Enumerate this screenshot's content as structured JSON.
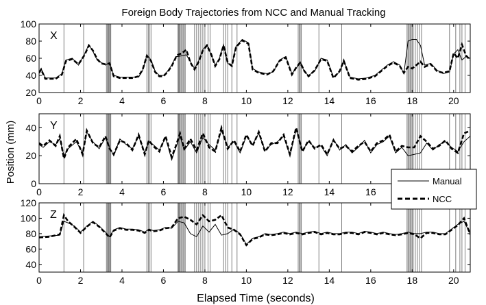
{
  "chart_data": {
    "type": "line",
    "title": "Foreign Body Trajectories from NCC and Manual Tracking",
    "xlabel": "Elapsed Time (seconds)",
    "ylabel": "Position (mm)",
    "xlim": [
      0,
      20.8
    ],
    "legend": {
      "placement": "right",
      "entries": [
        "Manual",
        "NCC"
      ]
    },
    "colors": {
      "manual": "#000000",
      "ncc": "#000000",
      "markers": "#7f7f7f"
    },
    "event_lines": [
      1.2,
      2.15,
      3.25,
      3.3,
      3.33,
      3.36,
      3.4,
      3.43,
      3.46,
      5.2,
      5.27,
      5.33,
      5.4,
      6.7,
      6.73,
      6.76,
      6.8,
      6.85,
      6.9,
      6.95,
      7.0,
      7.05,
      7.5,
      7.6,
      7.7,
      7.8,
      7.9,
      8.0,
      8.15,
      8.25,
      8.9,
      9.0,
      9.1,
      9.3,
      9.55,
      12.5,
      12.55,
      12.6,
      12.65,
      13.5,
      14.6,
      17.75,
      17.8,
      17.85,
      17.9,
      17.95,
      18.0,
      18.05,
      18.15,
      18.25,
      18.35,
      18.45,
      19.8,
      20.1,
      20.3,
      20.4,
      20.55
    ],
    "panels": [
      {
        "label": "X",
        "ylim": [
          20,
          100
        ],
        "yticks": [
          "100",
          "80",
          "60",
          "40",
          "20"
        ],
        "xticks": [
          "0",
          "2",
          "4",
          "6",
          "8",
          "10",
          "12",
          "14",
          "16",
          "18",
          "20"
        ],
        "manual": {
          "x": [
            0,
            0.1,
            0.3,
            0.8,
            1.1,
            1.3,
            1.6,
            1.9,
            2.2,
            2.4,
            2.6,
            2.8,
            3.0,
            3.2,
            3.4,
            3.6,
            3.9,
            4.2,
            4.5,
            4.8,
            5.0,
            5.2,
            5.4,
            5.6,
            5.8,
            6.0,
            6.2,
            6.4,
            6.6,
            6.7,
            6.9,
            7.1,
            7.3,
            7.5,
            7.7,
            7.9,
            8.1,
            8.3,
            8.5,
            8.7,
            8.9,
            9.1,
            9.3,
            9.5,
            9.8,
            10.1,
            10.3,
            10.6,
            11.0,
            11.3,
            11.6,
            11.9,
            12.2,
            12.4,
            12.6,
            12.8,
            13.0,
            13.3,
            13.6,
            13.9,
            14.2,
            14.5,
            14.7,
            15.0,
            15.4,
            15.8,
            16.2,
            16.5,
            16.8,
            17.1,
            17.4,
            17.6,
            17.8,
            18.0,
            18.2,
            18.4,
            18.6,
            18.9,
            19.2,
            19.5,
            19.8,
            20.0,
            20.2,
            20.4,
            20.6,
            20.8
          ],
          "y": [
            42,
            48,
            37,
            37,
            42,
            58,
            60,
            52,
            65,
            76,
            68,
            58,
            55,
            52,
            55,
            40,
            38,
            38,
            38,
            38,
            46,
            64,
            58,
            45,
            40,
            40,
            45,
            52,
            62,
            62,
            63,
            64,
            56,
            48,
            57,
            70,
            76,
            64,
            52,
            60,
            76,
            54,
            52,
            74,
            82,
            78,
            48,
            44,
            42,
            44,
            58,
            62,
            42,
            48,
            56,
            44,
            40,
            45,
            60,
            58,
            38,
            44,
            58,
            38,
            36,
            37,
            40,
            46,
            52,
            56,
            52,
            42,
            80,
            82,
            82,
            75,
            52,
            54,
            46,
            42,
            44,
            65,
            70,
            58,
            62,
            60
          ]
        },
        "ncc": {
          "x": [
            0,
            0.1,
            0.3,
            0.8,
            1.1,
            1.3,
            1.6,
            1.9,
            2.2,
            2.4,
            2.6,
            2.8,
            3.0,
            3.2,
            3.4,
            3.6,
            3.9,
            4.2,
            4.5,
            4.8,
            5.0,
            5.2,
            5.4,
            5.6,
            5.8,
            6.0,
            6.2,
            6.4,
            6.6,
            6.7,
            6.9,
            7.1,
            7.3,
            7.5,
            7.7,
            7.9,
            8.1,
            8.3,
            8.5,
            8.7,
            8.9,
            9.1,
            9.3,
            9.5,
            9.8,
            10.1,
            10.3,
            10.6,
            11.0,
            11.3,
            11.6,
            11.9,
            12.2,
            12.4,
            12.6,
            12.8,
            13.0,
            13.3,
            13.6,
            13.9,
            14.2,
            14.5,
            14.7,
            15.0,
            15.4,
            15.8,
            16.2,
            16.5,
            16.8,
            17.1,
            17.4,
            17.6,
            17.8,
            18.0,
            18.2,
            18.4,
            18.6,
            18.9,
            19.2,
            19.5,
            19.8,
            20.0,
            20.2,
            20.4,
            20.6,
            20.8
          ],
          "y": [
            43,
            47,
            36,
            36,
            41,
            57,
            59,
            53,
            64,
            75,
            69,
            59,
            54,
            53,
            54,
            39,
            37,
            37,
            37,
            39,
            47,
            63,
            57,
            44,
            39,
            39,
            44,
            51,
            61,
            64,
            66,
            70,
            55,
            47,
            56,
            69,
            75,
            65,
            51,
            59,
            75,
            55,
            51,
            73,
            81,
            77,
            47,
            43,
            41,
            45,
            57,
            61,
            41,
            49,
            55,
            45,
            39,
            46,
            59,
            57,
            37,
            45,
            57,
            37,
            35,
            36,
            39,
            45,
            51,
            55,
            51,
            43,
            50,
            48,
            52,
            56,
            50,
            53,
            45,
            43,
            45,
            66,
            60,
            76,
            63,
            58
          ]
        }
      },
      {
        "label": "Y",
        "ylim": [
          0,
          50
        ],
        "yticks": [
          "40",
          "20",
          "0"
        ],
        "xticks": [
          "0",
          "2",
          "4",
          "6",
          "8",
          "10",
          "12",
          "14",
          "16",
          "18",
          "20"
        ],
        "manual": {
          "x": [
            0,
            0.2,
            0.5,
            0.8,
            1.0,
            1.2,
            1.4,
            1.8,
            2.1,
            2.3,
            2.6,
            2.9,
            3.2,
            3.4,
            3.6,
            3.9,
            4.2,
            4.5,
            4.8,
            5.1,
            5.3,
            5.5,
            5.8,
            6.1,
            6.4,
            6.6,
            6.8,
            7.0,
            7.3,
            7.6,
            7.9,
            8.2,
            8.5,
            8.8,
            9.1,
            9.4,
            9.7,
            10.0,
            10.3,
            10.6,
            10.9,
            11.2,
            11.5,
            11.8,
            12.1,
            12.4,
            12.7,
            13.0,
            13.3,
            13.6,
            13.9,
            14.2,
            14.5,
            14.8,
            15.1,
            15.4,
            15.7,
            16.0,
            16.3,
            16.6,
            16.9,
            17.2,
            17.5,
            17.8,
            18.1,
            18.4,
            18.7,
            19.0,
            19.3,
            19.6,
            19.9,
            20.2,
            20.5,
            20.8
          ],
          "y": [
            28,
            26,
            30,
            28,
            32,
            20,
            25,
            30,
            22,
            37,
            30,
            25,
            33,
            26,
            20,
            32,
            28,
            25,
            34,
            22,
            30,
            28,
            24,
            33,
            17,
            26,
            34,
            24,
            30,
            22,
            33,
            28,
            24,
            38,
            26,
            30,
            22,
            34,
            28,
            36,
            24,
            28,
            30,
            34,
            20,
            39,
            24,
            30,
            26,
            27,
            20,
            32,
            24,
            28,
            22,
            26,
            31,
            22,
            28,
            30,
            34,
            22,
            26,
            20,
            21,
            22,
            29,
            24,
            28,
            30,
            26,
            23,
            30,
            34
          ]
        },
        "ncc": {
          "x": [
            0,
            0.2,
            0.5,
            0.8,
            1.0,
            1.2,
            1.4,
            1.8,
            2.1,
            2.3,
            2.6,
            2.9,
            3.2,
            3.4,
            3.6,
            3.9,
            4.2,
            4.5,
            4.8,
            5.1,
            5.3,
            5.5,
            5.8,
            6.1,
            6.4,
            6.6,
            6.8,
            7.0,
            7.3,
            7.6,
            7.9,
            8.2,
            8.5,
            8.8,
            9.1,
            9.4,
            9.7,
            10.0,
            10.3,
            10.6,
            10.9,
            11.2,
            11.5,
            11.8,
            12.1,
            12.4,
            12.7,
            13.0,
            13.3,
            13.6,
            13.9,
            14.2,
            14.5,
            14.8,
            15.1,
            15.4,
            15.7,
            16.0,
            16.3,
            16.6,
            16.9,
            17.2,
            17.5,
            17.8,
            18.1,
            18.4,
            18.7,
            19.0,
            19.3,
            19.6,
            19.9,
            20.2,
            20.5,
            20.8
          ],
          "y": [
            29,
            27,
            31,
            27,
            34,
            18,
            26,
            32,
            21,
            38,
            29,
            26,
            34,
            25,
            21,
            31,
            29,
            24,
            35,
            21,
            31,
            27,
            23,
            34,
            19,
            27,
            36,
            25,
            32,
            24,
            36,
            26,
            23,
            40,
            25,
            31,
            23,
            35,
            27,
            37,
            23,
            29,
            29,
            35,
            21,
            40,
            23,
            31,
            25,
            28,
            21,
            31,
            25,
            27,
            23,
            27,
            30,
            23,
            29,
            31,
            35,
            23,
            27,
            26,
            26,
            34,
            30,
            25,
            27,
            31,
            25,
            22,
            36,
            38
          ]
        }
      },
      {
        "label": "Z",
        "ylim": [
          30,
          120
        ],
        "yticks": [
          "120",
          "100",
          "80",
          "60",
          "40"
        ],
        "xticks": [
          "0",
          "2",
          "4",
          "6",
          "8",
          "10",
          "12",
          "14",
          "16",
          "18",
          "20"
        ],
        "manual": {
          "x": [
            0,
            0.5,
            1.0,
            1.2,
            1.4,
            1.7,
            2.0,
            2.3,
            2.6,
            2.9,
            3.2,
            3.4,
            3.6,
            3.9,
            4.2,
            4.5,
            4.8,
            5.1,
            5.3,
            5.5,
            5.8,
            6.1,
            6.4,
            6.7,
            7.0,
            7.3,
            7.6,
            7.9,
            8.2,
            8.5,
            8.8,
            9.1,
            9.4,
            9.7,
            10.0,
            10.3,
            10.6,
            10.9,
            11.2,
            11.5,
            11.8,
            12.1,
            12.4,
            12.7,
            13.0,
            13.3,
            13.6,
            13.9,
            14.2,
            14.5,
            14.8,
            15.1,
            15.4,
            15.7,
            16.0,
            16.3,
            16.6,
            16.9,
            17.2,
            17.5,
            17.8,
            18.1,
            18.4,
            18.7,
            19.0,
            19.3,
            19.6,
            19.9,
            20.2,
            20.5,
            20.8
          ],
          "y": [
            76,
            77,
            78,
            96,
            94,
            90,
            82,
            90,
            96,
            90,
            82,
            76,
            85,
            88,
            86,
            86,
            85,
            82,
            86,
            84,
            85,
            88,
            87,
            96,
            94,
            80,
            76,
            90,
            82,
            92,
            78,
            80,
            86,
            80,
            66,
            74,
            76,
            80,
            79,
            80,
            82,
            80,
            82,
            80,
            82,
            83,
            80,
            82,
            80,
            80,
            82,
            82,
            80,
            83,
            82,
            80,
            82,
            80,
            79,
            80,
            82,
            80,
            80,
            82,
            82,
            80,
            80,
            86,
            92,
            96,
            80
          ]
        },
        "ncc": {
          "x": [
            0,
            0.5,
            1.0,
            1.2,
            1.4,
            1.7,
            2.0,
            2.3,
            2.6,
            2.9,
            3.2,
            3.4,
            3.6,
            3.9,
            4.2,
            4.5,
            4.8,
            5.1,
            5.3,
            5.5,
            5.8,
            6.1,
            6.4,
            6.7,
            7.0,
            7.3,
            7.6,
            7.9,
            8.2,
            8.5,
            8.8,
            9.1,
            9.4,
            9.7,
            10.0,
            10.3,
            10.6,
            10.9,
            11.2,
            11.5,
            11.8,
            12.1,
            12.4,
            12.7,
            13.0,
            13.3,
            13.6,
            13.9,
            14.2,
            14.5,
            14.8,
            15.1,
            15.4,
            15.7,
            16.0,
            16.3,
            16.6,
            16.9,
            17.2,
            17.5,
            17.8,
            18.1,
            18.4,
            18.7,
            19.0,
            19.3,
            19.6,
            19.9,
            20.2,
            20.5,
            20.8
          ],
          "y": [
            75,
            76,
            79,
            104,
            96,
            89,
            81,
            89,
            95,
            89,
            81,
            75,
            84,
            87,
            85,
            85,
            84,
            81,
            85,
            83,
            84,
            87,
            88,
            100,
            102,
            98,
            92,
            104,
            96,
            98,
            104,
            88,
            85,
            79,
            65,
            73,
            75,
            79,
            78,
            79,
            81,
            79,
            81,
            79,
            81,
            82,
            79,
            81,
            79,
            79,
            81,
            81,
            79,
            82,
            81,
            79,
            81,
            79,
            78,
            79,
            81,
            79,
            74,
            81,
            81,
            79,
            79,
            85,
            91,
            100,
            79
          ]
        }
      }
    ]
  }
}
